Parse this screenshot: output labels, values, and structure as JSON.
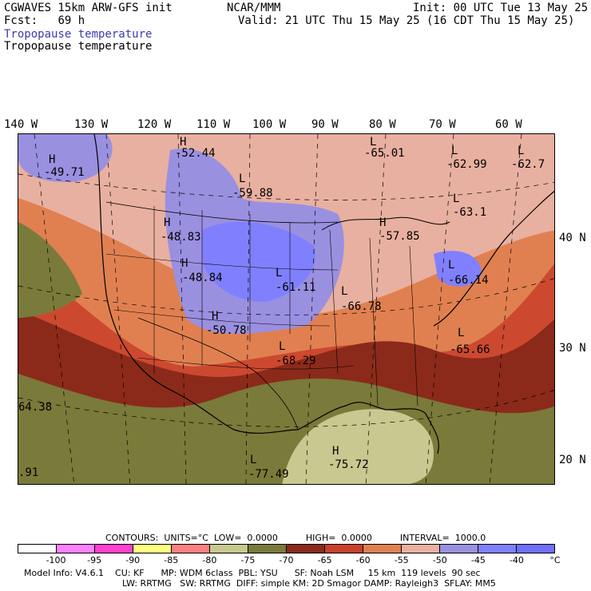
{
  "header": {
    "model": "CGWAVES 15km ARW-GFS init",
    "fcst_label": "Fcst:",
    "fcst_value": "69 h",
    "org": "NCAR/MMM",
    "init": "Init: 00 UTC Tue 13 May 25",
    "valid": "Valid: 21 UTC Thu 15 May 25 (16 CDT Thu 15 May 25)",
    "field_blue": "Tropopause temperature",
    "field_black": "Tropopause temperature"
  },
  "axes": {
    "top_longitudes": [
      "140 W",
      "130 W",
      "120 W",
      "110 W",
      "100 W",
      "90 W",
      "80 W",
      "70 W",
      "60 W"
    ],
    "right_latitudes": [
      "40 N",
      "30 N",
      "20 N"
    ]
  },
  "map_labels": [
    {
      "type": "H",
      "value": "-49.71"
    },
    {
      "type": "H",
      "value": "-52.44"
    },
    {
      "type": "L",
      "value": "-59.88"
    },
    {
      "type": "L",
      "value": "-65.01"
    },
    {
      "type": "L",
      "value": "-62.99"
    },
    {
      "type": "L",
      "value": "-62.7"
    },
    {
      "type": "L",
      "value": "-63.1"
    },
    {
      "type": "H",
      "value": "-48.83"
    },
    {
      "type": "H",
      "value": "-48.84"
    },
    {
      "type": "L",
      "value": "-61.11"
    },
    {
      "type": "H",
      "value": "-57.85"
    },
    {
      "type": "L",
      "value": "-66.14"
    },
    {
      "type": "L",
      "value": "-66.78"
    },
    {
      "type": "H",
      "value": "-50.78"
    },
    {
      "type": "L",
      "value": "-65.66"
    },
    {
      "type": "L",
      "value": "-68.29"
    },
    {
      "type": "",
      "value": "64.38"
    },
    {
      "type": "H",
      "value": "-75.72"
    },
    {
      "type": "L",
      "value": "-77.49"
    },
    {
      "type": "",
      "value": ".91"
    }
  ],
  "contours": {
    "label": "CONTOURS:",
    "units": "UNITS=°C",
    "low": "LOW=  0.0000",
    "high": "HIGH=  0.0000",
    "interval": "INTERVAL=  1000.0"
  },
  "colorbar": {
    "colors": [
      "#ffffff",
      "#ff80ff",
      "#ff40d0",
      "#ffff80",
      "#ff8080",
      "#c8c890",
      "#7a7a3a",
      "#8b2a1a",
      "#c8402a",
      "#e08050",
      "#e8b0a0",
      "#9a90e0",
      "#8080ff",
      "#7070ff"
    ],
    "labels": [
      "-100",
      "-95",
      "-90",
      "-85",
      "-80",
      "-75",
      "-70",
      "-65",
      "-60",
      "-55",
      "-50",
      "-45",
      "-40",
      "°C"
    ]
  },
  "footer": {
    "line1": "Model Info: V4.6.1    CU: KF      MP: WDM 6class  PBL: YSU      SF: Noah LSM     15 km  119 levels  90 sec",
    "line2": "LW: RRTMG   SW: RRTMG  DIFF: simple KM: 2D Smagor DAMP: Rayleigh3  SFLAY: MM5"
  }
}
